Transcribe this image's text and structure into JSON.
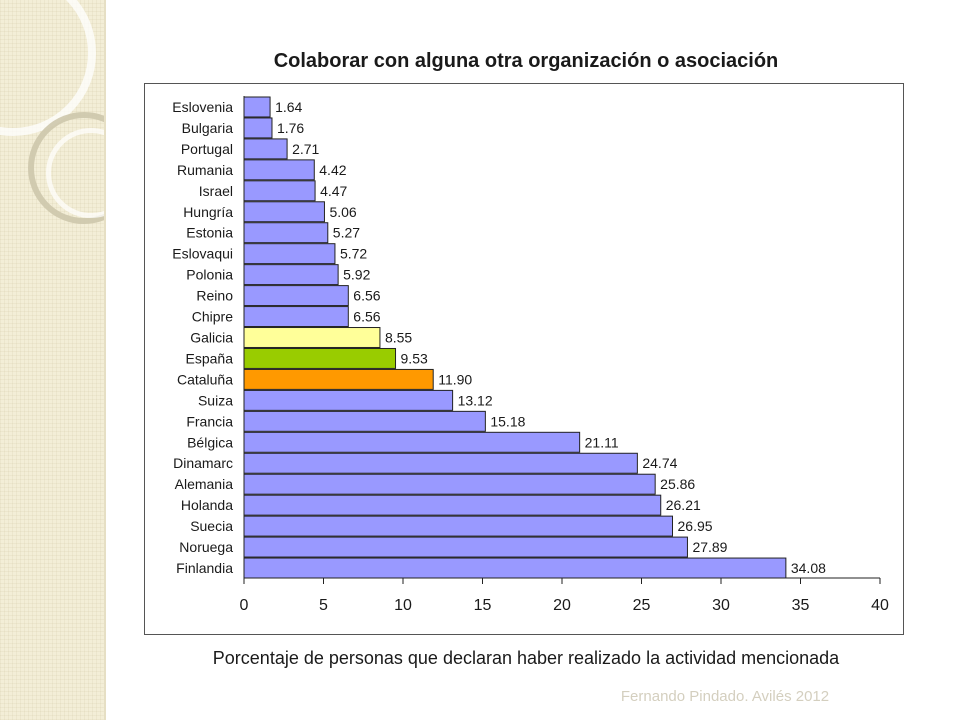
{
  "footer": "Fernando Pindado. Avilés 2012",
  "chart_data": {
    "type": "bar",
    "orientation": "horizontal",
    "title": "Colaborar con alguna otra organización o asociación",
    "xlabel": "Porcentaje de personas que declaran haber realizado la actividad mencionada",
    "ylabel": "",
    "xlim": [
      0,
      40
    ],
    "xticks": [
      0,
      5,
      10,
      15,
      20,
      25,
      30,
      35,
      40
    ],
    "grid": false,
    "legend": "none",
    "categories": [
      "Eslovenia",
      "Bulgaria",
      "Portugal",
      "Rumania",
      "Israel",
      "Hungría",
      "Estonia",
      "Eslovaqui",
      "Polonia",
      "Reino",
      "Chipre",
      "Galicia",
      "España",
      "Cataluña",
      "Suiza",
      "Francia",
      "Bélgica",
      "Dinamarc",
      "Alemania",
      "Holanda",
      "Suecia",
      "Noruega",
      "Finlandia"
    ],
    "values": [
      1.64,
      1.76,
      2.71,
      4.42,
      4.47,
      5.06,
      5.27,
      5.72,
      5.92,
      6.56,
      6.56,
      8.55,
      9.53,
      11.9,
      13.12,
      15.18,
      21.11,
      24.74,
      25.86,
      26.21,
      26.95,
      27.89,
      34.08
    ],
    "value_labels": [
      "1.64",
      "1.76",
      "2.71",
      "4.42",
      "4.47",
      "5.06",
      "5.27",
      "5.72",
      "5.92",
      "6.56",
      "6.56",
      "8.55",
      "9.53",
      "11.90",
      "13.12",
      "15.18",
      "21.11",
      "24.74",
      "25.86",
      "26.21",
      "26.95",
      "27.89",
      "34.08"
    ],
    "colors": {
      "default": "#9999ff",
      "Galicia": "#ffff99",
      "España": "#99cc00",
      "Cataluña": "#ff9900"
    }
  }
}
